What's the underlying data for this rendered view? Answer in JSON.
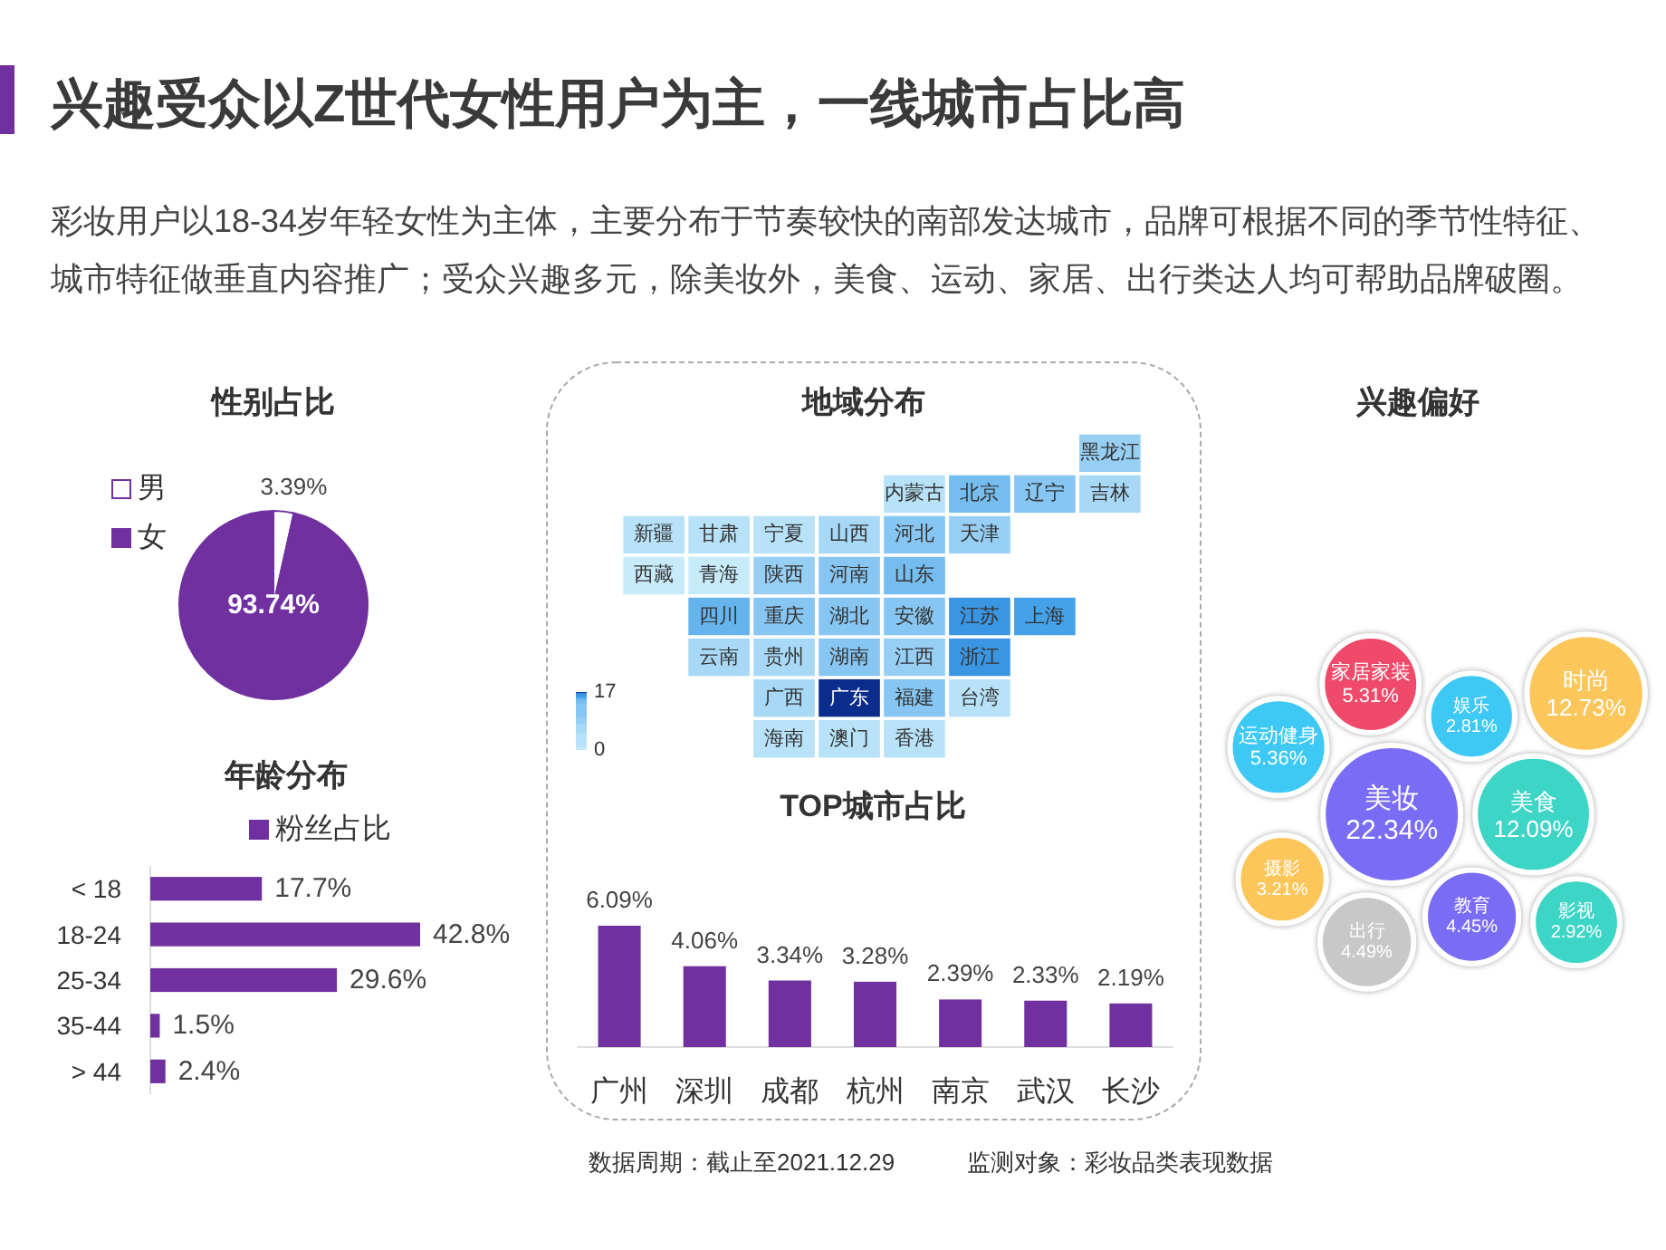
{
  "chart_data": [
    {
      "type": "other",
      "title": "兴趣受众以Z世代女性用户为主，一线城市占比高",
      "subtitle": "彩妆用户以18-34岁年轻女性为主体，主要分布于节奏较快的南部发达城市，品牌可根据不同的季节性特征、城市特征做垂直内容推广；受众兴趣多元，除美妆外，美食、运动、家居、出行类达人均可帮助品牌破圈。",
      "annotations": [
        "数据周期：截止至2021.12.29",
        "监测对象：彩妆品类表现数据"
      ]
    },
    {
      "type": "pie",
      "title": "性别占比",
      "categories": [
        "男",
        "女"
      ],
      "values": [
        3.39,
        93.74
      ],
      "colors": [
        "#ffffff",
        "#7030a0"
      ],
      "value_labels": [
        "3.39%",
        "93.74%"
      ],
      "legend": "top left"
    },
    {
      "type": "other",
      "title": "地域分布",
      "categories": [
        "黑龙江",
        "内蒙古",
        "北京",
        "辽宁",
        "吉林",
        "新疆",
        "甘肃",
        "宁夏",
        "山西",
        "河北",
        "天津",
        "西藏",
        "青海",
        "陕西",
        "河南",
        "山东",
        "四川",
        "重庆",
        "湖北",
        "安徽",
        "江苏",
        "上海",
        "云南",
        "贵州",
        "湖南",
        "江西",
        "浙江",
        "广西",
        "广东",
        "福建",
        "台湾",
        "海南",
        "澳门",
        "香港"
      ],
      "colors": [
        "#97cff4",
        "#b8e2f8",
        "#76bdef",
        "#87c6f2",
        "#a7d9f6",
        "#b8e2f8",
        "#b8e2f8",
        "#b8e2f8",
        "#a7d9f6",
        "#87c6f2",
        "#97cff4",
        "#c8ebfa",
        "#c8ebfa",
        "#97cff4",
        "#87c6f2",
        "#76bdef",
        "#66b4ed",
        "#87c6f2",
        "#87c6f2",
        "#87c6f2",
        "#3a96e2",
        "#45a2e9",
        "#a7d9f6",
        "#a7d9f6",
        "#87c6f2",
        "#97cff4",
        "#3a96e2",
        "#a7d9f6",
        "#0a2c8a",
        "#87c6f2",
        "#b8e2f8",
        "#b8e2f8",
        "#b8e2f8",
        "#b8e2f8"
      ],
      "annotations": [
        "17",
        "0"
      ]
    },
    {
      "type": "other",
      "title": "兴趣偏好",
      "categories": [
        "美妆",
        "美食",
        "教育",
        "娱乐",
        "家居家装",
        "出行",
        "时尚",
        "影视",
        "运动健身",
        "摄影"
      ],
      "values": [
        22.34,
        12.09,
        4.45,
        2.81,
        5.31,
        4.49,
        12.73,
        2.92,
        5.36,
        3.21
      ],
      "value_labels": [
        "22.34%",
        "12.09%",
        "4.45%",
        "2.81%",
        "5.31%",
        "4.49%",
        "12.73%",
        "2.92%",
        "5.36%",
        "3.21%"
      ],
      "colors": [
        "#7b6cf6",
        "#3dd5c5",
        "#7b6cf6",
        "#3ec9f5",
        "#f04a6a",
        "#c8c8c8",
        "#fcc65a",
        "#3dd5c5",
        "#3ec9f5",
        "#fcc65a"
      ]
    },
    {
      "type": "bar",
      "orientation": "horizontal",
      "title": "年龄分布",
      "categories": [
        "< 18",
        "18-24",
        "25-34",
        "35-44",
        "> 44"
      ],
      "series": [
        {
          "name": "粉丝占比",
          "color": "#7030a0",
          "values": [
            17.7,
            42.8,
            29.6,
            1.5,
            2.4
          ],
          "value_labels": [
            "17.7%",
            "42.8%",
            "29.6%",
            "1.5%",
            "2.4%"
          ]
        }
      ],
      "legend": "top",
      "tick_labels": "y"
    },
    {
      "type": "bar",
      "title": "TOP城市占比",
      "categories": [
        "广州",
        "深圳",
        "成都",
        "杭州",
        "南京",
        "武汉",
        "长沙"
      ],
      "values": [
        6.09,
        4.06,
        3.34,
        3.28,
        2.39,
        2.33,
        2.19
      ],
      "color": "#7030a0",
      "value_labels": [
        "6.09%",
        "4.06%",
        "3.34%",
        "3.28%",
        "2.39%",
        "2.33%",
        "2.19%"
      ],
      "tick_labels": "x"
    }
  ]
}
